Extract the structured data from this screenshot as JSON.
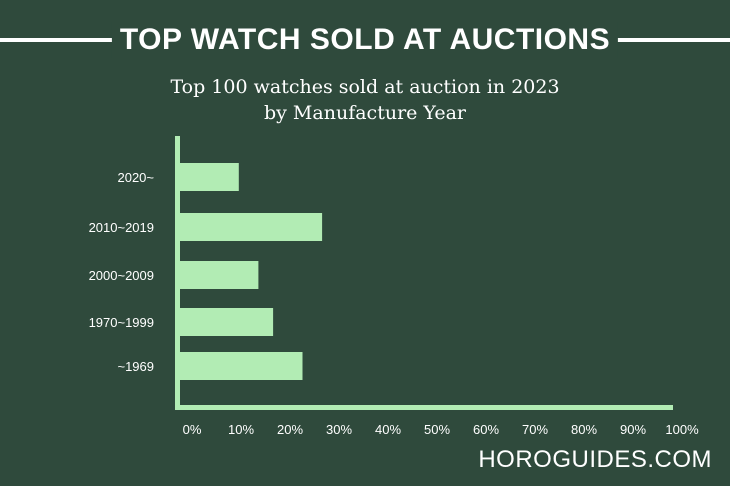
{
  "banner_title": "TOP WATCH SOLD AT AUCTIONS",
  "footer_brand": "HOROGUIDES.COM",
  "colors": {
    "background": "#2f4a3c",
    "bar": "#b2ecb4",
    "text": "#ffffff"
  },
  "chart_data": {
    "type": "bar",
    "orientation": "horizontal",
    "title": "Top 100 watches sold at auction in 2023",
    "subtitle": "by Manufacture Year",
    "categories": [
      "2020~",
      "2010~2019",
      "2000~2009",
      "1970~1999",
      "~1969"
    ],
    "values": [
      12,
      29,
      16,
      19,
      25
    ],
    "xlim": [
      0,
      100
    ],
    "xticks": [
      "0%",
      "10%",
      "20%",
      "30%",
      "40%",
      "50%",
      "60%",
      "70%",
      "80%",
      "90%",
      "100%"
    ],
    "grid": false,
    "legend": "none"
  }
}
